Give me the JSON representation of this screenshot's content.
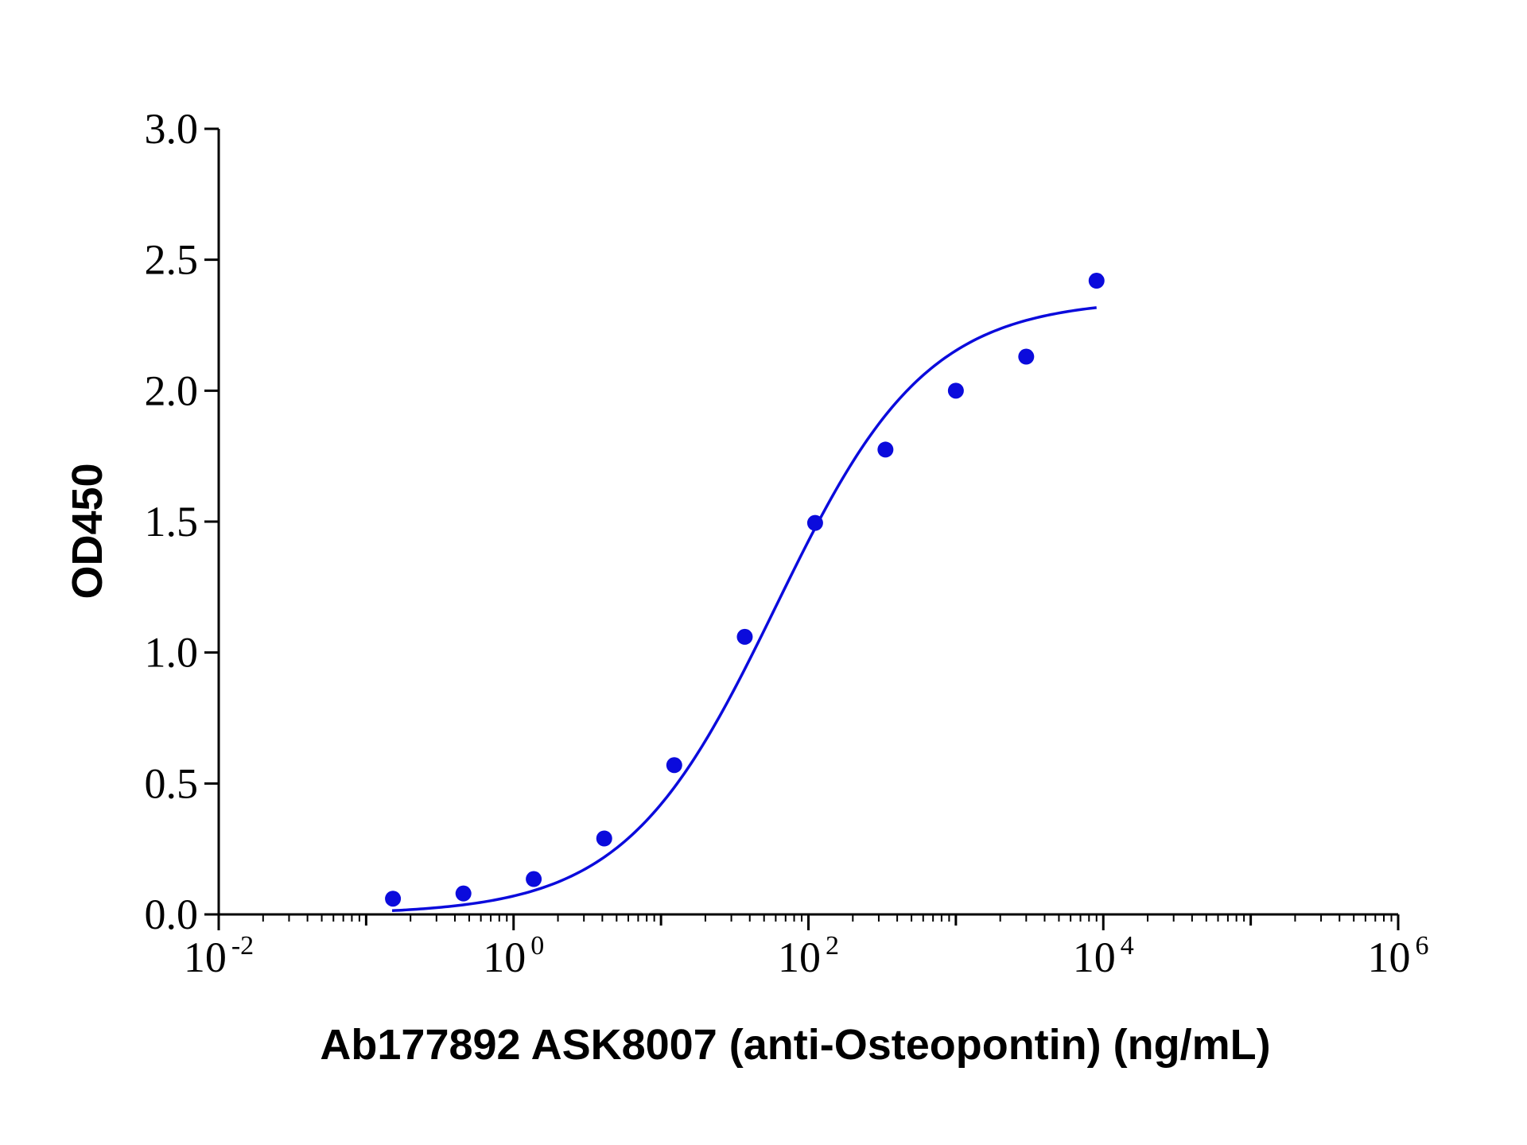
{
  "chart_data": {
    "type": "scatter",
    "xlabel": "Ab177892 ASK8007 (anti-Osteopontin) (ng/mL)",
    "ylabel": "OD450",
    "xscale": "log",
    "xlim": [
      0.01,
      1000000
    ],
    "ylim": [
      0,
      3
    ],
    "x_ticks": [
      {
        "base": "10",
        "exp": "-2"
      },
      {
        "base": "10",
        "exp": "0"
      },
      {
        "base": "10",
        "exp": "2"
      },
      {
        "base": "10",
        "exp": "4"
      },
      {
        "base": "10",
        "exp": "6"
      }
    ],
    "y_ticks": [
      "0.0",
      "0.5",
      "1.0",
      "1.5",
      "2.0",
      "2.5",
      "3.0"
    ],
    "grid": false,
    "series": [
      {
        "color": "#0b0bdc",
        "points": [
          {
            "x": 0.152,
            "y": 0.06
          },
          {
            "x": 0.457,
            "y": 0.08
          },
          {
            "x": 1.37,
            "y": 0.135
          },
          {
            "x": 4.12,
            "y": 0.29
          },
          {
            "x": 12.3,
            "y": 0.57
          },
          {
            "x": 37.0,
            "y": 1.06
          },
          {
            "x": 111,
            "y": 1.495
          },
          {
            "x": 333,
            "y": 1.775
          },
          {
            "x": 1000,
            "y": 2.0
          },
          {
            "x": 3000,
            "y": 2.13
          },
          {
            "x": 9000,
            "y": 2.42
          }
        ],
        "fit": {
          "type": "4PL",
          "bottom": 0.0,
          "top": 2.35,
          "ec50": 60,
          "hill": 0.85,
          "x_range": [
            0.15,
            9000
          ]
        }
      }
    ]
  }
}
